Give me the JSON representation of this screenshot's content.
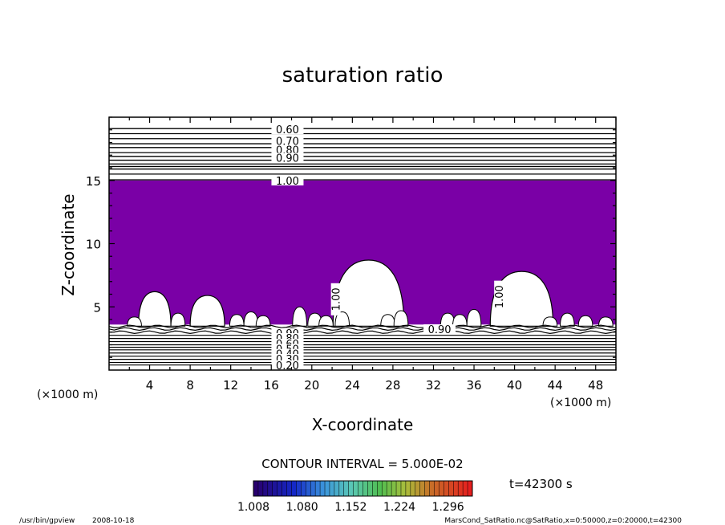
{
  "chart_data": {
    "type": "heatmap",
    "title": "saturation ratio",
    "xlabel": "X-coordinate",
    "ylabel": "Z-coordinate",
    "x_unit": "(×1000 m)",
    "y_unit": "(×1000 m)",
    "xlim": [
      0,
      50
    ],
    "ylim": [
      0,
      20
    ],
    "x_ticks": [
      4,
      8,
      12,
      16,
      20,
      24,
      28,
      32,
      36,
      40,
      44,
      48
    ],
    "y_ticks": [
      5,
      10,
      15
    ],
    "upper_contour_levels": [
      0.6,
      0.7,
      0.8,
      0.9,
      1.0
    ],
    "upper_contour_labels": [
      "0.60",
      "0.70",
      "0.80",
      "0.90",
      "1.00"
    ],
    "lower_contour_labels": [
      "0.90",
      "0.80",
      "0.60",
      "0.50",
      "0.40",
      "0.30",
      "0.20"
    ],
    "inline_labels": [
      "0.90",
      "1.00",
      "1.00"
    ],
    "shaded_region": {
      "color": "#7a00a6",
      "z_top": 15.0,
      "z_bottom_approx": 3.6,
      "meaning": "saturation ratio > 1.0"
    },
    "cloud_gaps": [
      {
        "x_center": 4.5,
        "top_z": 6.2
      },
      {
        "x_center": 9.7,
        "top_z": 5.9
      },
      {
        "x_center": 25.6,
        "top_z": 8.7
      },
      {
        "x_center": 40.7,
        "top_z": 7.8
      }
    ],
    "contour_interval": "CONTOUR INTERVAL = 5.000E-02",
    "time": "t=42300 s",
    "colorbar_ticks": [
      "1.008",
      "1.080",
      "1.152",
      "1.224",
      "1.296"
    ],
    "colorbar_range": [
      1.008,
      1.332
    ]
  },
  "footer": {
    "left_program": "/usr/bin/gpview",
    "left_date": "2008-10-18",
    "right": "MarsCond_SatRatio.nc@SatRatio,x=0:50000,z=0:20000,t=42300"
  }
}
